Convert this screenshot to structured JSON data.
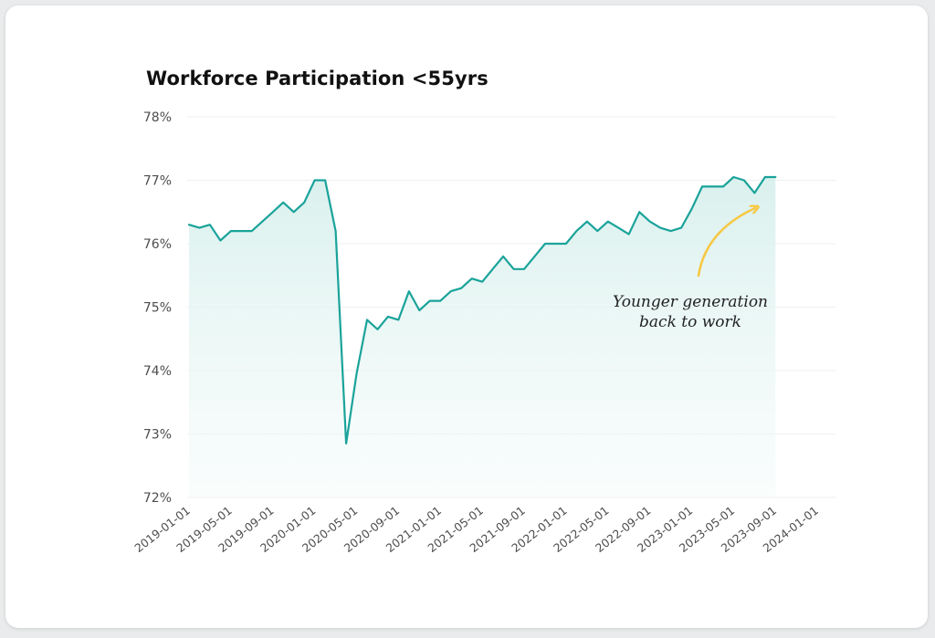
{
  "colors": {
    "line": "#1aa39a",
    "fill": "#e3f4f2",
    "arrow": "#f6c844",
    "grid": "#efefef"
  },
  "chart_data": {
    "type": "area",
    "title": "Workforce Participation <55yrs",
    "xlabel": "",
    "ylabel": "",
    "ylim": [
      72,
      78
    ],
    "y_unit": "%",
    "yticks": [
      "72%",
      "73%",
      "74%",
      "75%",
      "76%",
      "77%",
      "78%"
    ],
    "xticks": [
      "2019-01-01",
      "2019-05-01",
      "2019-09-01",
      "2020-01-01",
      "2020-05-01",
      "2020-09-01",
      "2021-01-01",
      "2021-05-01",
      "2021-09-01",
      "2022-01-01",
      "2022-05-01",
      "2022-09-01",
      "2023-01-01",
      "2023-05-01",
      "2023-09-01",
      "2024-01-01"
    ],
    "grid": true,
    "legend": "none",
    "series": [
      {
        "x": [
          "2019-01",
          "2019-02",
          "2019-03",
          "2019-04",
          "2019-05",
          "2019-06",
          "2019-07",
          "2019-08",
          "2019-09",
          "2019-10",
          "2019-11",
          "2019-12",
          "2020-01",
          "2020-02",
          "2020-03",
          "2020-04",
          "2020-05",
          "2020-06",
          "2020-07",
          "2020-08",
          "2020-09",
          "2020-10",
          "2020-11",
          "2020-12",
          "2021-01",
          "2021-02",
          "2021-03",
          "2021-04",
          "2021-05",
          "2021-06",
          "2021-07",
          "2021-08",
          "2021-09",
          "2021-10",
          "2021-11",
          "2021-12",
          "2022-01",
          "2022-02",
          "2022-03",
          "2022-04",
          "2022-05",
          "2022-06",
          "2022-07",
          "2022-08",
          "2022-09",
          "2022-10",
          "2022-11",
          "2022-12",
          "2023-01",
          "2023-02",
          "2023-03",
          "2023-04",
          "2023-05",
          "2023-06",
          "2023-07",
          "2023-08",
          "2023-09"
        ],
        "values": [
          76.3,
          76.25,
          76.3,
          76.05,
          76.2,
          76.2,
          76.2,
          76.35,
          76.5,
          76.65,
          76.5,
          76.65,
          77.0,
          77.0,
          76.2,
          72.85,
          73.95,
          74.8,
          74.65,
          74.85,
          74.8,
          75.25,
          74.95,
          75.1,
          75.1,
          75.25,
          75.3,
          75.45,
          75.4,
          75.6,
          75.8,
          75.6,
          75.6,
          75.8,
          76.0,
          76.0,
          76.0,
          76.2,
          76.35,
          76.2,
          76.35,
          76.25,
          76.15,
          76.5,
          76.35,
          76.25,
          76.2,
          76.25,
          76.55,
          76.9,
          76.9,
          76.9,
          77.05,
          77.0,
          76.8,
          77.05,
          77.05
        ]
      }
    ],
    "annotations": [
      {
        "text": [
          "Younger generation",
          "back to work"
        ]
      }
    ]
  }
}
